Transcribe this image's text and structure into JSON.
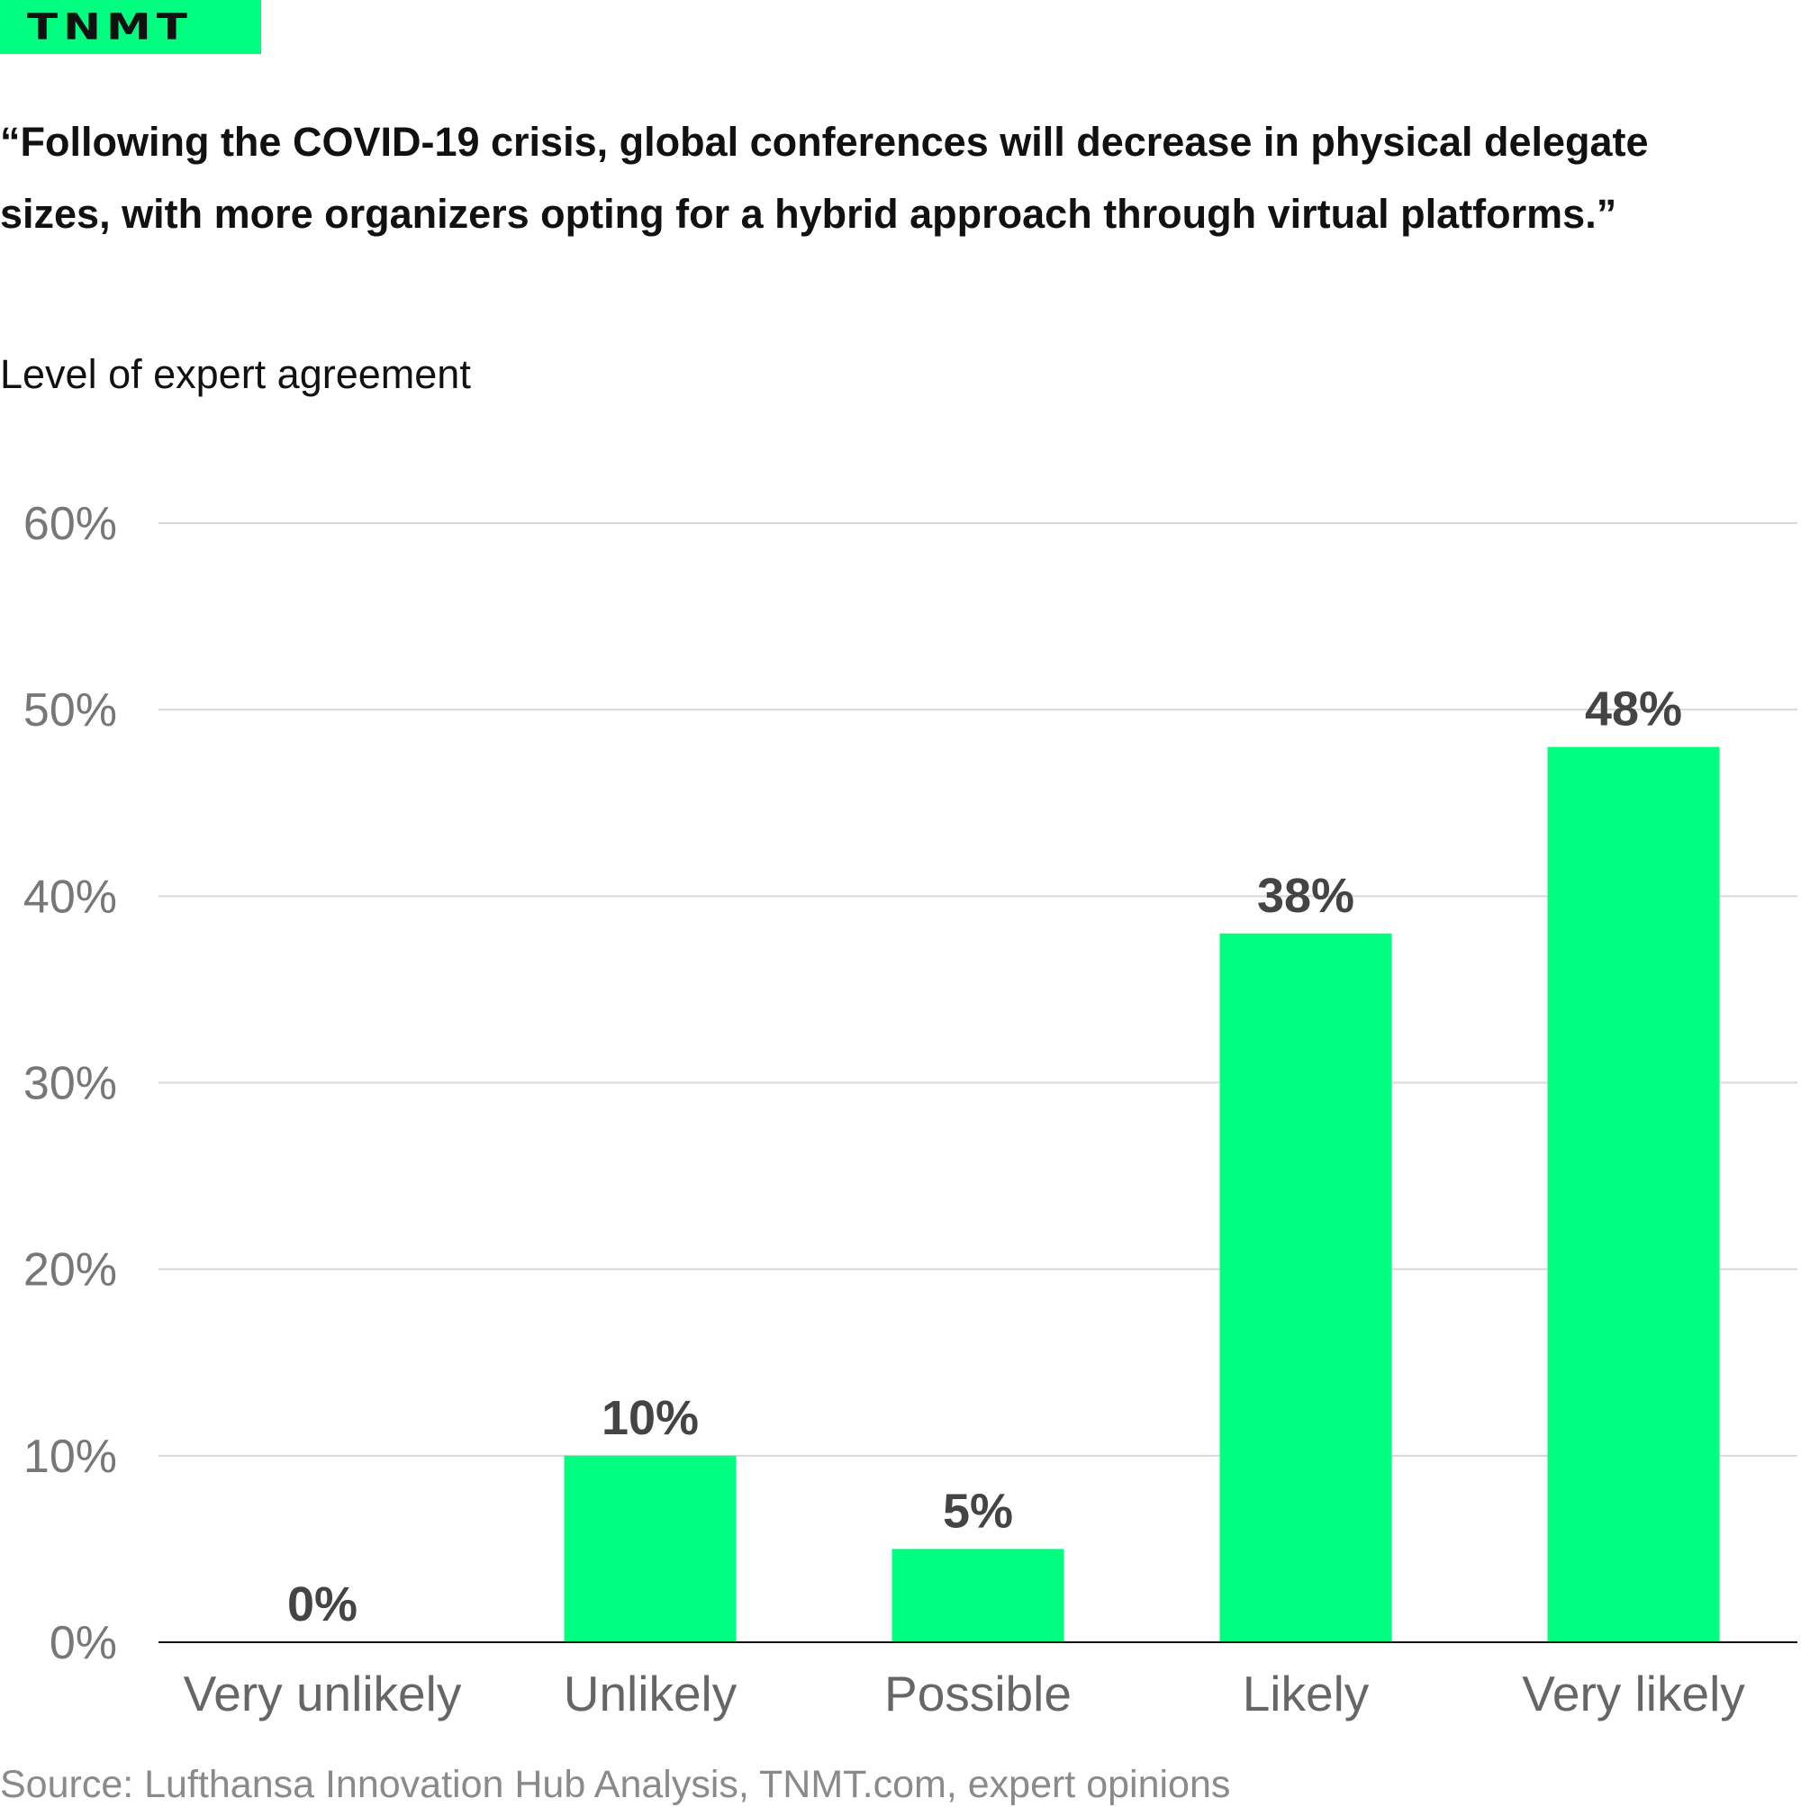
{
  "logo": {
    "text": "TNMT"
  },
  "colors": {
    "accent": "#00ff80",
    "grid": "#d8d8d8",
    "axis": "#111111"
  },
  "chart_data": {
    "type": "bar",
    "title": "“Following the COVID-19 crisis, global conferences will decrease in physical delegate sizes, with more organizers opting for a hybrid approach through virtual platforms.”",
    "ylabel": "Level of expert agreement",
    "xlabel": "",
    "categories": [
      "Very unlikely",
      "Unlikely",
      "Possible",
      "Likely",
      "Very likely"
    ],
    "values": [
      0,
      10,
      5,
      38,
      48
    ],
    "value_labels": [
      "0%",
      "10%",
      "5%",
      "38%",
      "48%"
    ],
    "ylim": [
      0,
      60
    ],
    "yticks": [
      0,
      10,
      20,
      30,
      40,
      50,
      60
    ],
    "ytick_labels": [
      "0%",
      "10%",
      "20%",
      "30%",
      "40%",
      "50%",
      "60%"
    ],
    "grid": true
  },
  "source": "Source: Lufthansa Innovation Hub Analysis, TNMT.com, expert opinions"
}
